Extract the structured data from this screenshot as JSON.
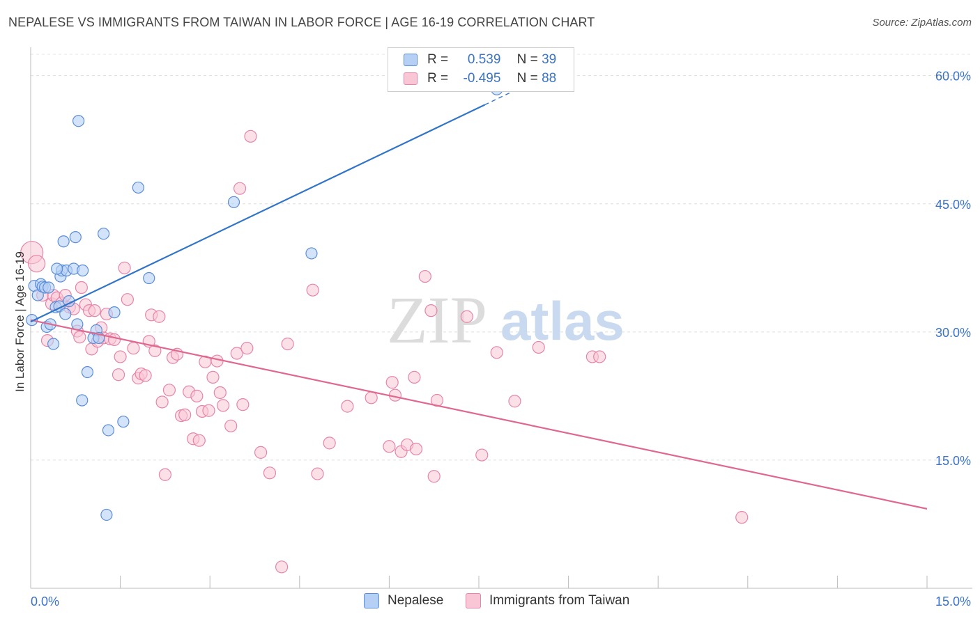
{
  "title": "NEPALESE VS IMMIGRANTS FROM TAIWAN IN LABOR FORCE | AGE 16-19 CORRELATION CHART",
  "source": "Source: ZipAtlas.com",
  "watermark": {
    "zip": "ZIP",
    "atlas": "atlas"
  },
  "legend": {
    "rows": [
      {
        "r_label": "R =",
        "r_value": "0.539",
        "n_label": "N =",
        "n_value": "39"
      },
      {
        "r_label": "R =",
        "r_value": "-0.495",
        "n_label": "N =",
        "n_value": "88"
      }
    ]
  },
  "colors": {
    "nepalese_fill": "#b6d0f5",
    "nepalese_stroke": "#5b8dd6",
    "nepalese_line": "#2f74c9",
    "taiwan_fill": "#f9c6d6",
    "taiwan_stroke": "#e585a8",
    "taiwan_line": "#e0688f",
    "axis_text": "#3a73c8"
  },
  "chart_data": {
    "type": "scatter",
    "title": "NEPALESE VS IMMIGRANTS FROM TAIWAN IN LABOR FORCE | AGE 16-19 CORRELATION CHART",
    "xlabel": "",
    "ylabel": "In Labor Force | Age 16-19",
    "xlim": [
      0,
      15
    ],
    "ylim": [
      0,
      62.5
    ],
    "x_tick_labels": [
      "0.0%",
      "15.0%"
    ],
    "y_ticks": [
      15,
      30,
      45,
      60
    ],
    "y_tick_labels": [
      "15.0%",
      "30.0%",
      "45.0%",
      "60.0%"
    ],
    "grid": true,
    "legend_position": "top-center",
    "series": [
      {
        "name": "Nepalese",
        "r": 0.539,
        "n": 39,
        "trend": {
          "x0": 0.0,
          "y0": 31.2,
          "x1": 8.5,
          "y1": 59.6,
          "solid_until_x": 7.6
        },
        "points": [
          [
            0.02,
            31.4
          ],
          [
            0.06,
            35.4
          ],
          [
            0.12,
            34.3
          ],
          [
            0.17,
            35.6
          ],
          [
            0.2,
            35.3
          ],
          [
            0.24,
            35.2
          ],
          [
            0.27,
            30.6
          ],
          [
            0.33,
            30.9
          ],
          [
            0.38,
            28.6
          ],
          [
            0.42,
            32.9
          ],
          [
            0.48,
            33.0
          ],
          [
            0.5,
            36.5
          ],
          [
            0.52,
            37.2
          ],
          [
            0.55,
            40.6
          ],
          [
            0.58,
            32.1
          ],
          [
            0.6,
            37.2
          ],
          [
            0.64,
            33.6
          ],
          [
            0.72,
            37.4
          ],
          [
            0.75,
            41.1
          ],
          [
            0.78,
            30.9
          ],
          [
            0.8,
            54.7
          ],
          [
            0.86,
            22.0
          ],
          [
            0.87,
            37.2
          ],
          [
            0.95,
            25.3
          ],
          [
            1.05,
            29.3
          ],
          [
            1.1,
            30.2
          ],
          [
            1.14,
            29.3
          ],
          [
            1.22,
            41.5
          ],
          [
            1.27,
            8.6
          ],
          [
            1.3,
            18.5
          ],
          [
            1.4,
            32.3
          ],
          [
            1.55,
            19.5
          ],
          [
            1.8,
            46.9
          ],
          [
            1.98,
            36.3
          ],
          [
            3.4,
            45.2
          ],
          [
            4.7,
            39.2
          ],
          [
            7.8,
            58.4
          ],
          [
            0.3,
            35.2
          ],
          [
            0.44,
            37.4
          ]
        ]
      },
      {
        "name": "Immigrants from Taiwan",
        "r": -0.495,
        "n": 88,
        "trend": {
          "x0": 0.0,
          "y0": 31.4,
          "x1": 15.0,
          "y1": 9.3
        },
        "points": [
          [
            0.02,
            39.3
          ],
          [
            0.1,
            38.0
          ],
          [
            0.2,
            34.3
          ],
          [
            0.28,
            29.0
          ],
          [
            0.35,
            33.3
          ],
          [
            0.38,
            34.3
          ],
          [
            0.44,
            34.0
          ],
          [
            0.52,
            33.4
          ],
          [
            0.58,
            34.3
          ],
          [
            0.65,
            32.9
          ],
          [
            0.72,
            32.7
          ],
          [
            0.78,
            30.1
          ],
          [
            0.82,
            29.4
          ],
          [
            0.85,
            35.2
          ],
          [
            0.92,
            33.2
          ],
          [
            0.98,
            32.5
          ],
          [
            1.02,
            28.0
          ],
          [
            1.07,
            32.5
          ],
          [
            1.12,
            28.9
          ],
          [
            1.18,
            30.5
          ],
          [
            1.22,
            29.3
          ],
          [
            1.27,
            32.1
          ],
          [
            1.33,
            29.2
          ],
          [
            1.4,
            29.1
          ],
          [
            1.47,
            25.0
          ],
          [
            1.5,
            27.1
          ],
          [
            1.57,
            37.5
          ],
          [
            1.62,
            33.8
          ],
          [
            1.72,
            28.1
          ],
          [
            1.8,
            24.6
          ],
          [
            1.85,
            25.1
          ],
          [
            1.92,
            24.9
          ],
          [
            1.98,
            28.9
          ],
          [
            2.02,
            32.0
          ],
          [
            2.08,
            27.8
          ],
          [
            2.15,
            31.8
          ],
          [
            2.2,
            21.8
          ],
          [
            2.25,
            13.3
          ],
          [
            2.32,
            23.2
          ],
          [
            2.38,
            27.0
          ],
          [
            2.45,
            27.4
          ],
          [
            2.52,
            20.2
          ],
          [
            2.58,
            20.3
          ],
          [
            2.65,
            23.0
          ],
          [
            2.72,
            17.5
          ],
          [
            2.78,
            22.5
          ],
          [
            2.82,
            17.3
          ],
          [
            2.87,
            20.7
          ],
          [
            2.92,
            26.5
          ],
          [
            2.98,
            20.8
          ],
          [
            3.05,
            24.7
          ],
          [
            3.12,
            26.6
          ],
          [
            3.17,
            22.9
          ],
          [
            3.22,
            21.4
          ],
          [
            3.35,
            19.0
          ],
          [
            3.45,
            27.5
          ],
          [
            3.5,
            46.8
          ],
          [
            3.55,
            21.5
          ],
          [
            3.62,
            28.1
          ],
          [
            3.68,
            52.9
          ],
          [
            3.85,
            15.9
          ],
          [
            4.0,
            13.5
          ],
          [
            4.2,
            2.5
          ],
          [
            4.3,
            28.6
          ],
          [
            4.72,
            34.9
          ],
          [
            4.8,
            13.4
          ],
          [
            5.0,
            17.0
          ],
          [
            5.3,
            21.3
          ],
          [
            5.7,
            22.3
          ],
          [
            6.0,
            16.6
          ],
          [
            6.05,
            24.1
          ],
          [
            6.1,
            22.6
          ],
          [
            6.2,
            16.0
          ],
          [
            6.3,
            16.8
          ],
          [
            6.42,
            24.7
          ],
          [
            6.45,
            16.3
          ],
          [
            6.6,
            36.5
          ],
          [
            6.7,
            32.5
          ],
          [
            6.75,
            13.1
          ],
          [
            6.8,
            22.0
          ],
          [
            7.3,
            31.8
          ],
          [
            7.55,
            15.6
          ],
          [
            7.8,
            27.6
          ],
          [
            8.1,
            21.9
          ],
          [
            8.5,
            28.2
          ],
          [
            9.4,
            27.1
          ],
          [
            9.52,
            27.1
          ],
          [
            11.9,
            8.3
          ]
        ]
      }
    ]
  },
  "bottom_legend": [
    {
      "label": "Nepalese"
    },
    {
      "label": "Immigrants from Taiwan"
    }
  ]
}
